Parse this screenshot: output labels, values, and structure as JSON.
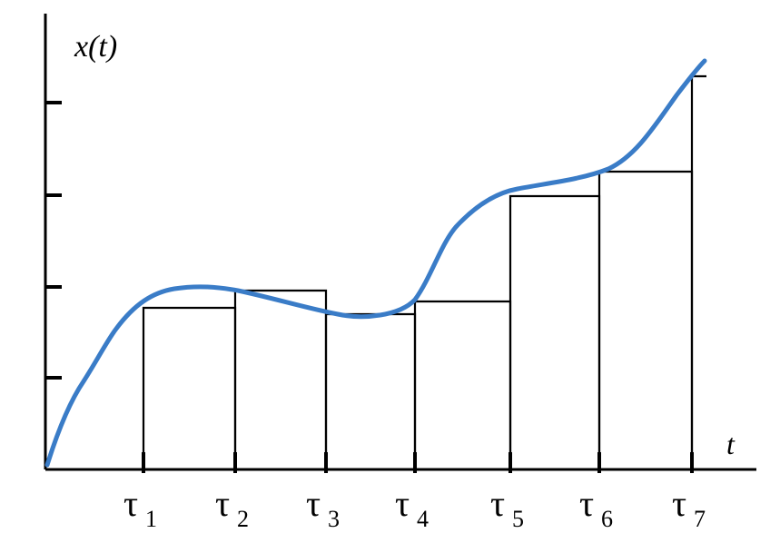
{
  "labels": {
    "y_axis": "x(t)",
    "x_axis": "t",
    "tau_symbol": "τ",
    "tau_subscripts": [
      "1",
      "2",
      "3",
      "4",
      "5",
      "6",
      "7"
    ]
  },
  "colors": {
    "curve": "#3a7cc7",
    "axes": "#000000",
    "steps": "#000000"
  },
  "chart_data": {
    "type": "line",
    "title": "",
    "xlabel": "t",
    "ylabel": "x(t)",
    "y_ticks": 4,
    "x_ticks": [
      "τ1",
      "τ2",
      "τ3",
      "τ4",
      "τ5",
      "τ6",
      "τ7"
    ],
    "note": "curve x(t) approximated by step heights sampled at each τ"
  }
}
